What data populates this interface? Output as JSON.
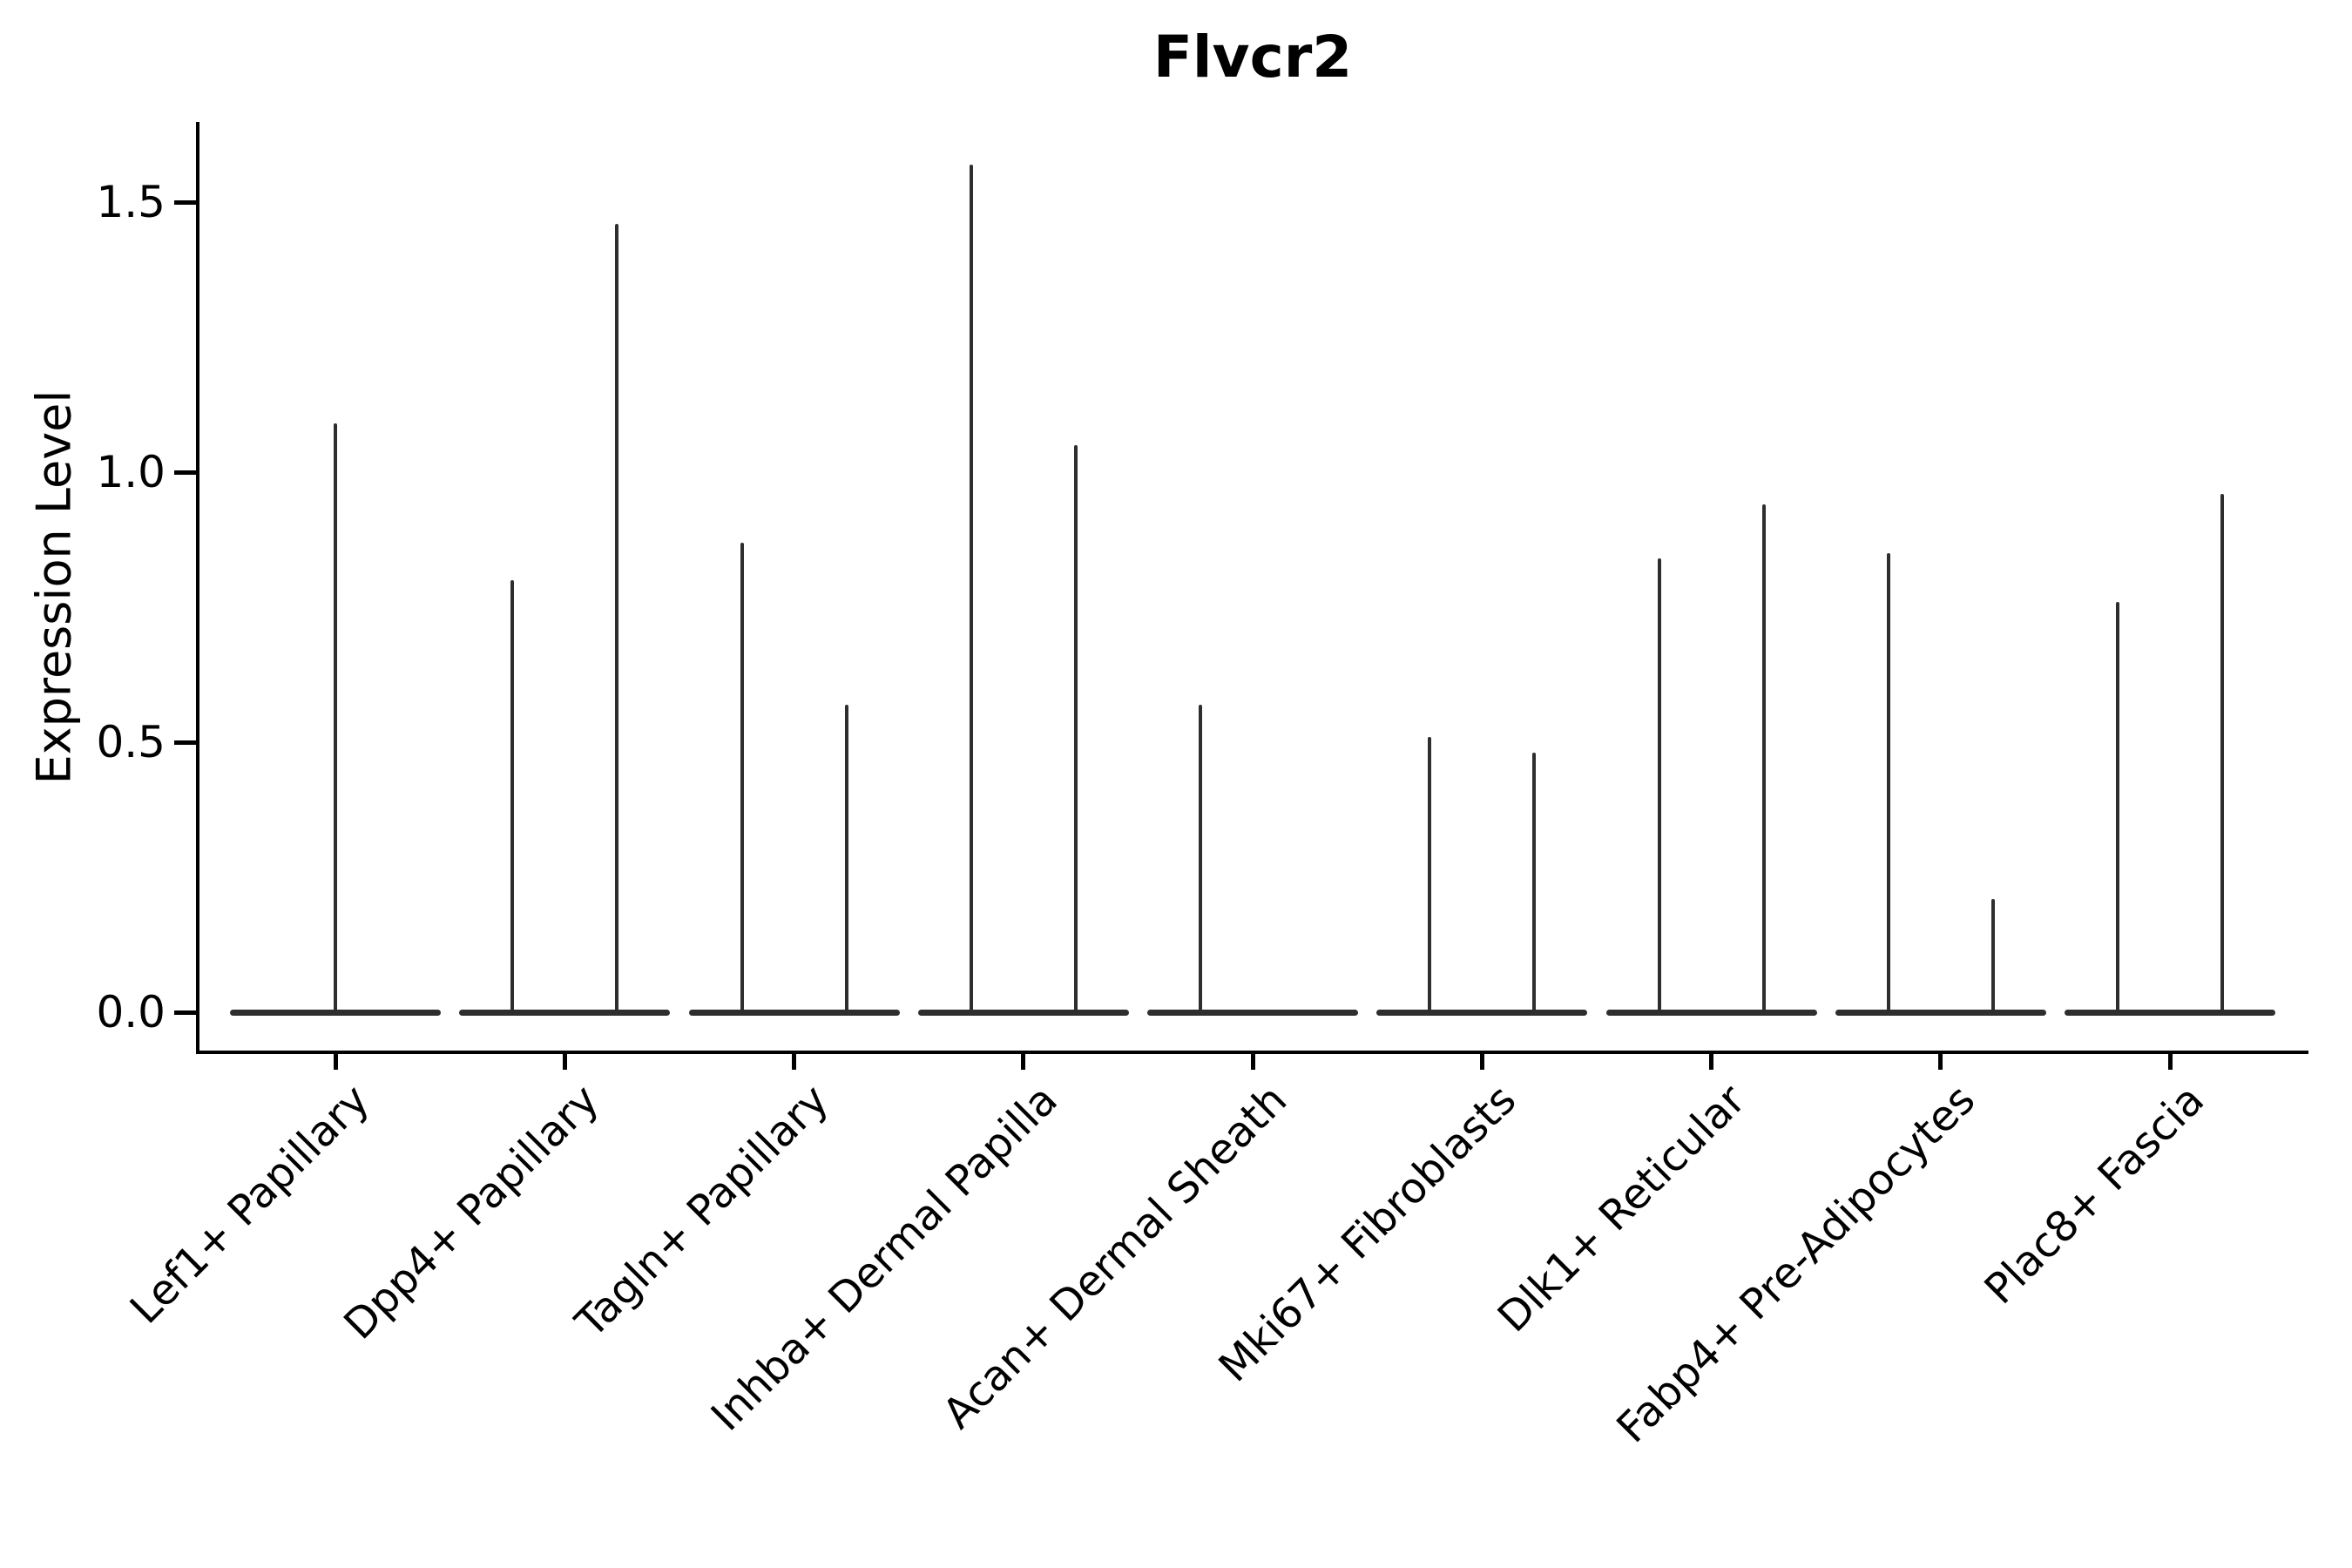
{
  "chart_data": {
    "type": "violin",
    "title": "Flvcr2",
    "ylabel": "Expression Level",
    "xlabel": "",
    "ylim": [
      0,
      1.65
    ],
    "yticks": [
      0.0,
      0.5,
      1.0,
      1.5
    ],
    "grid": false,
    "legend": "none",
    "colors": {
      "violin": "#2e2e2e",
      "axis": "#000000",
      "text": "#000000",
      "background": "#ffffff"
    },
    "categories": [
      "Lef1+ Papillary",
      "Dpp4+ Papillary",
      "Tagln+ Papillary",
      "Inhba+ Dermal Papilla",
      "Acan+ Dermal Sheath",
      "Mki67+ Fibroblasts",
      "Dlk1+ Reticular",
      "Fabp4+ Pre-Adipocytes",
      "Plac8+ Fascia"
    ],
    "violins": [
      {
        "category": "Lef1+ Papillary",
        "spikes": [
          {
            "pos": "center",
            "max": 1.09
          }
        ]
      },
      {
        "category": "Dpp4+ Papillary",
        "spikes": [
          {
            "pos": "left",
            "max": 0.8
          },
          {
            "pos": "right",
            "max": 1.46
          }
        ]
      },
      {
        "category": "Tagln+ Papillary",
        "spikes": [
          {
            "pos": "left",
            "max": 0.87
          },
          {
            "pos": "right",
            "max": 0.57
          }
        ]
      },
      {
        "category": "Inhba+ Dermal Papilla",
        "spikes": [
          {
            "pos": "left",
            "max": 1.57
          },
          {
            "pos": "right",
            "max": 1.05
          }
        ]
      },
      {
        "category": "Acan+ Dermal Sheath",
        "spikes": [
          {
            "pos": "left",
            "max": 0.57
          }
        ]
      },
      {
        "category": "Mki67+ Fibroblasts",
        "spikes": [
          {
            "pos": "left",
            "max": 0.51
          },
          {
            "pos": "right",
            "max": 0.48
          }
        ]
      },
      {
        "category": "Dlk1+ Reticular",
        "spikes": [
          {
            "pos": "left",
            "max": 0.84
          },
          {
            "pos": "right",
            "max": 0.94
          }
        ]
      },
      {
        "category": "Fabp4+ Pre-Adipocytes",
        "spikes": [
          {
            "pos": "left",
            "max": 0.85
          },
          {
            "pos": "right",
            "max": 0.21
          }
        ]
      },
      {
        "category": "Plac8+ Fascia",
        "spikes": [
          {
            "pos": "left",
            "max": 0.76
          },
          {
            "pos": "right",
            "max": 0.96
          }
        ]
      }
    ]
  }
}
